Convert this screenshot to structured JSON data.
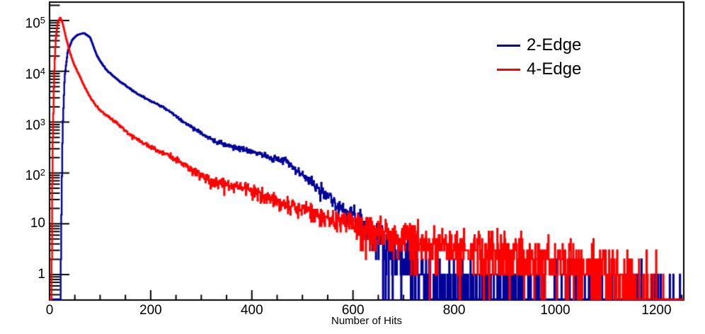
{
  "figure": {
    "background": "#ffffff",
    "axis_color": "#000000"
  },
  "chart_data": {
    "type": "line",
    "subtype": "step-histogram",
    "title": "",
    "xlabel": "Number of Hits",
    "ylabel": "",
    "grid": false,
    "x_axis": {
      "min": 0,
      "max": 1254,
      "major_ticks": [
        0,
        200,
        400,
        600,
        800,
        1000,
        1200
      ],
      "minor_step": 50
    },
    "y_axis": {
      "scale": "log",
      "min": 0.315,
      "max": 230000,
      "major_ticks": [
        {
          "label": "1",
          "exp": "",
          "value": 1
        },
        {
          "label": "10",
          "exp": "",
          "value": 10
        },
        {
          "label": "10",
          "exp": "2",
          "value": 100
        },
        {
          "label": "10",
          "exp": "3",
          "value": 1000
        },
        {
          "label": "10",
          "exp": "4",
          "value": 10000
        },
        {
          "label": "10",
          "exp": "5",
          "value": 100000
        }
      ]
    },
    "legend": {
      "position": "top-right",
      "entries": [
        {
          "label": "2-Edge",
          "color": "#000099"
        },
        {
          "label": "4-Edge",
          "color": "#ff0000"
        }
      ]
    },
    "series": [
      {
        "name": "2-Edge",
        "color": "#000099",
        "bin_width": 1,
        "range": [
          22,
          1254
        ],
        "peak": {
          "x": 68,
          "y": 57000
        },
        "envelope": [
          [
            22,
            0.4
          ],
          [
            24,
            40
          ],
          [
            26,
            800
          ],
          [
            30,
            8000
          ],
          [
            36,
            25000
          ],
          [
            45,
            42000
          ],
          [
            55,
            52000
          ],
          [
            68,
            57000
          ],
          [
            80,
            47000
          ],
          [
            94,
            20000
          ],
          [
            105,
            13500
          ],
          [
            115,
            10000
          ],
          [
            140,
            6200
          ],
          [
            170,
            3800
          ],
          [
            200,
            2600
          ],
          [
            226,
            1950
          ],
          [
            260,
            1100
          ],
          [
            290,
            700
          ],
          [
            324,
            430
          ],
          [
            360,
            330
          ],
          [
            390,
            290
          ],
          [
            420,
            225
          ],
          [
            445,
            190
          ],
          [
            468,
            170
          ],
          [
            490,
            112
          ],
          [
            510,
            80
          ],
          [
            534,
            48
          ],
          [
            560,
            28
          ],
          [
            585,
            18
          ],
          [
            610,
            12
          ],
          [
            640,
            7
          ],
          [
            665,
            4.2
          ],
          [
            690,
            2.6
          ],
          [
            720,
            1.3
          ],
          [
            760,
            0.6
          ],
          [
            820,
            0.35
          ],
          [
            900,
            0.25
          ],
          [
            1000,
            0.22
          ],
          [
            1100,
            0.18
          ],
          [
            1254,
            0.15
          ]
        ]
      },
      {
        "name": "4-Edge",
        "color": "#ff0000",
        "bin_width": 1,
        "range": [
          4,
          1220
        ],
        "peak": {
          "x": 21,
          "y": 115000
        },
        "envelope": [
          [
            4,
            0.4
          ],
          [
            6,
            300
          ],
          [
            9,
            8000
          ],
          [
            12,
            40000
          ],
          [
            16,
            90000
          ],
          [
            21,
            115000
          ],
          [
            26,
            88000
          ],
          [
            32,
            48000
          ],
          [
            40,
            24000
          ],
          [
            48,
            14000
          ],
          [
            59,
            8300
          ],
          [
            70,
            4800
          ],
          [
            85,
            2600
          ],
          [
            100,
            1700
          ],
          [
            129,
            1030
          ],
          [
            160,
            560
          ],
          [
            200,
            320
          ],
          [
            240,
            210
          ],
          [
            280,
            115
          ],
          [
            324,
            66
          ],
          [
            360,
            57
          ],
          [
            390,
            50
          ],
          [
            430,
            32
          ],
          [
            464,
            25
          ],
          [
            510,
            17
          ],
          [
            560,
            12
          ],
          [
            604,
            10
          ],
          [
            650,
            7
          ],
          [
            700,
            4.6
          ],
          [
            760,
            3.6
          ],
          [
            820,
            3.2
          ],
          [
            880,
            2.8
          ],
          [
            940,
            2.5
          ],
          [
            1000,
            2.2
          ],
          [
            1060,
            1.7
          ],
          [
            1100,
            1.2
          ],
          [
            1140,
            0.7
          ],
          [
            1180,
            0.3
          ],
          [
            1220,
            0.12
          ]
        ]
      }
    ]
  }
}
